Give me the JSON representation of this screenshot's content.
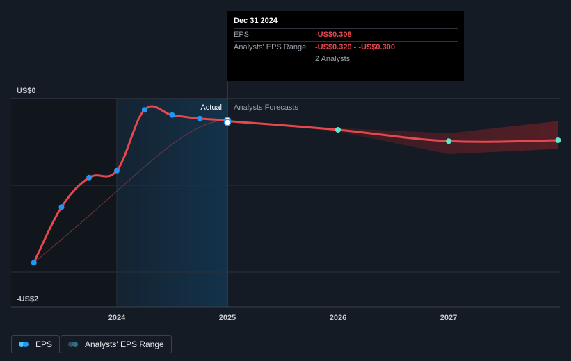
{
  "chart_data": {
    "type": "line",
    "y_top_label": "US$0",
    "y_bottom_label": "-US$2",
    "ylim": [
      -2.0,
      0.0
    ],
    "x_ticks": [
      "2024",
      "2025",
      "2026",
      "2027"
    ],
    "region_labels": {
      "actual": "Actual",
      "forecast": "Analysts Forecasts"
    },
    "series": [
      {
        "name": "EPS",
        "kind": "actual",
        "color": "#e5484d",
        "points": [
          {
            "x": 2023.25,
            "y": -1.89
          },
          {
            "x": 2023.5,
            "y": -1.25
          },
          {
            "x": 2023.75,
            "y": -0.91
          },
          {
            "x": 2024.0,
            "y": -0.83
          },
          {
            "x": 2024.25,
            "y": -0.13
          },
          {
            "x": 2024.5,
            "y": -0.19
          },
          {
            "x": 2024.75,
            "y": -0.23
          },
          {
            "x": 2025.0,
            "y": -0.25
          }
        ]
      },
      {
        "name": "EPS",
        "kind": "forecast",
        "color": "#e5484d",
        "points": [
          {
            "x": 2025.0,
            "y": -0.26
          },
          {
            "x": 2026.0,
            "y": -0.36
          },
          {
            "x": 2027.0,
            "y": -0.49
          },
          {
            "x": 2027.99,
            "y": -0.48
          }
        ]
      }
    ],
    "range_band": {
      "name": "Analysts' EPS Range",
      "points": [
        {
          "x": 2025.0,
          "low": -0.26,
          "high": -0.26
        },
        {
          "x": 2026.0,
          "low": -0.38,
          "high": -0.34
        },
        {
          "x": 2027.0,
          "low": -0.64,
          "high": -0.4
        },
        {
          "x": 2027.99,
          "low": -0.58,
          "high": -0.26
        }
      ]
    }
  },
  "tooltip": {
    "date": "Dec 31 2024",
    "rows": [
      {
        "label": "EPS",
        "value": "-US$0.308"
      },
      {
        "label": "Analysts' EPS Range",
        "value": "-US$0.320 - -US$0.300"
      },
      {
        "label": "",
        "value": "2 Analysts"
      }
    ]
  },
  "legend": {
    "eps": {
      "label": "EPS",
      "colors": [
        "#4fc3f7",
        "#2196f3"
      ]
    },
    "range": {
      "label": "Analysts' EPS Range",
      "colors": [
        "#2c6e8a",
        "#3b4a5a"
      ]
    }
  },
  "colors": {
    "actual_line": "#e5484d",
    "actual_dot": "#2196f3",
    "forecast_dot": "#5ee8c8",
    "highlight_band": "#13324a",
    "band_fill": "#6b1f26",
    "grid": "#2a313b"
  }
}
